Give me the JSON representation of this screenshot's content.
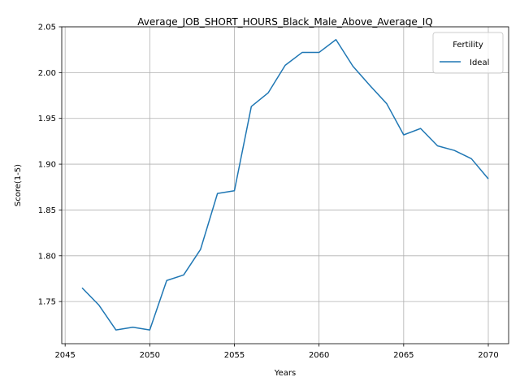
{
  "chart_data": {
    "type": "line",
    "title": "Average_JOB_SHORT_HOURS_Black_Male_Above_Average_IQ",
    "xlabel": "Years",
    "ylabel": "Score(1-5)",
    "xlim": [
      2044.8,
      2071.2
    ],
    "ylim": [
      1.704,
      2.05
    ],
    "xticks": [
      2045,
      2050,
      2055,
      2060,
      2065,
      2070
    ],
    "yticks": [
      1.75,
      1.8,
      1.85,
      1.9,
      1.95,
      2.0,
      2.05
    ],
    "ytick_labels": [
      "1.75",
      "1.80",
      "1.85",
      "1.90",
      "1.95",
      "2.00",
      "2.05"
    ],
    "grid": true,
    "legend": {
      "title": "Fertility",
      "placement": "top-right"
    },
    "series": [
      {
        "name": "Ideal",
        "color": "#1f77b4",
        "x": [
          2046,
          2047,
          2048,
          2049,
          2050,
          2051,
          2052,
          2053,
          2054,
          2055,
          2056,
          2057,
          2058,
          2059,
          2060,
          2061,
          2062,
          2063,
          2064,
          2065,
          2066,
          2067,
          2068,
          2069,
          2070
        ],
        "y": [
          1.765,
          1.746,
          1.719,
          1.722,
          1.719,
          1.773,
          1.779,
          1.807,
          1.868,
          1.871,
          1.963,
          1.978,
          2.008,
          2.022,
          2.022,
          2.036,
          2.007,
          1.986,
          1.966,
          1.932,
          1.939,
          1.92,
          1.915,
          1.906,
          1.884
        ]
      }
    ]
  }
}
